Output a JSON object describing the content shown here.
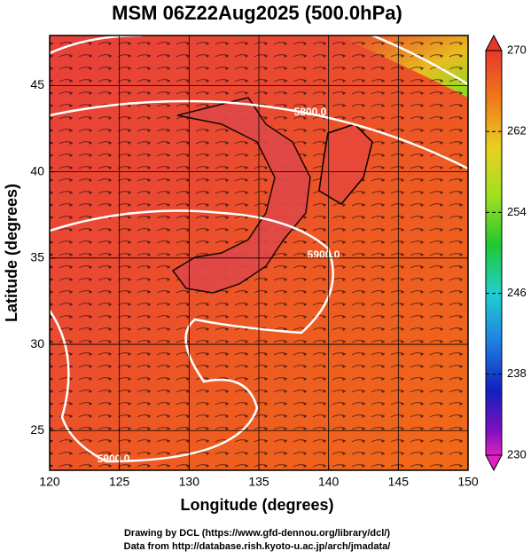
{
  "title": "MSM 06Z22Aug2025 (500.0hPa)",
  "x_axis": {
    "label": "Longitude (degrees)",
    "lim": [
      120,
      150
    ],
    "ticks": [
      120,
      125,
      130,
      135,
      140,
      145,
      150
    ]
  },
  "y_axis": {
    "label": "Latitude  (degrees)",
    "lim": [
      22.7,
      47.9
    ],
    "ticks": [
      25,
      30,
      35,
      40,
      45
    ]
  },
  "colorbar": {
    "lim": [
      230,
      270
    ],
    "ticks": [
      230,
      238,
      246,
      254,
      262,
      270
    ]
  },
  "contour_labels": [
    "5900.0",
    "5800.0",
    "5900.0"
  ],
  "credits": [
    "Drawing by DCL (https://www.gfd-dennou.org/library/dcl/)",
    "Data from http://database.rish.kyoto-u.ac.jp/arch/jmadata/"
  ]
}
